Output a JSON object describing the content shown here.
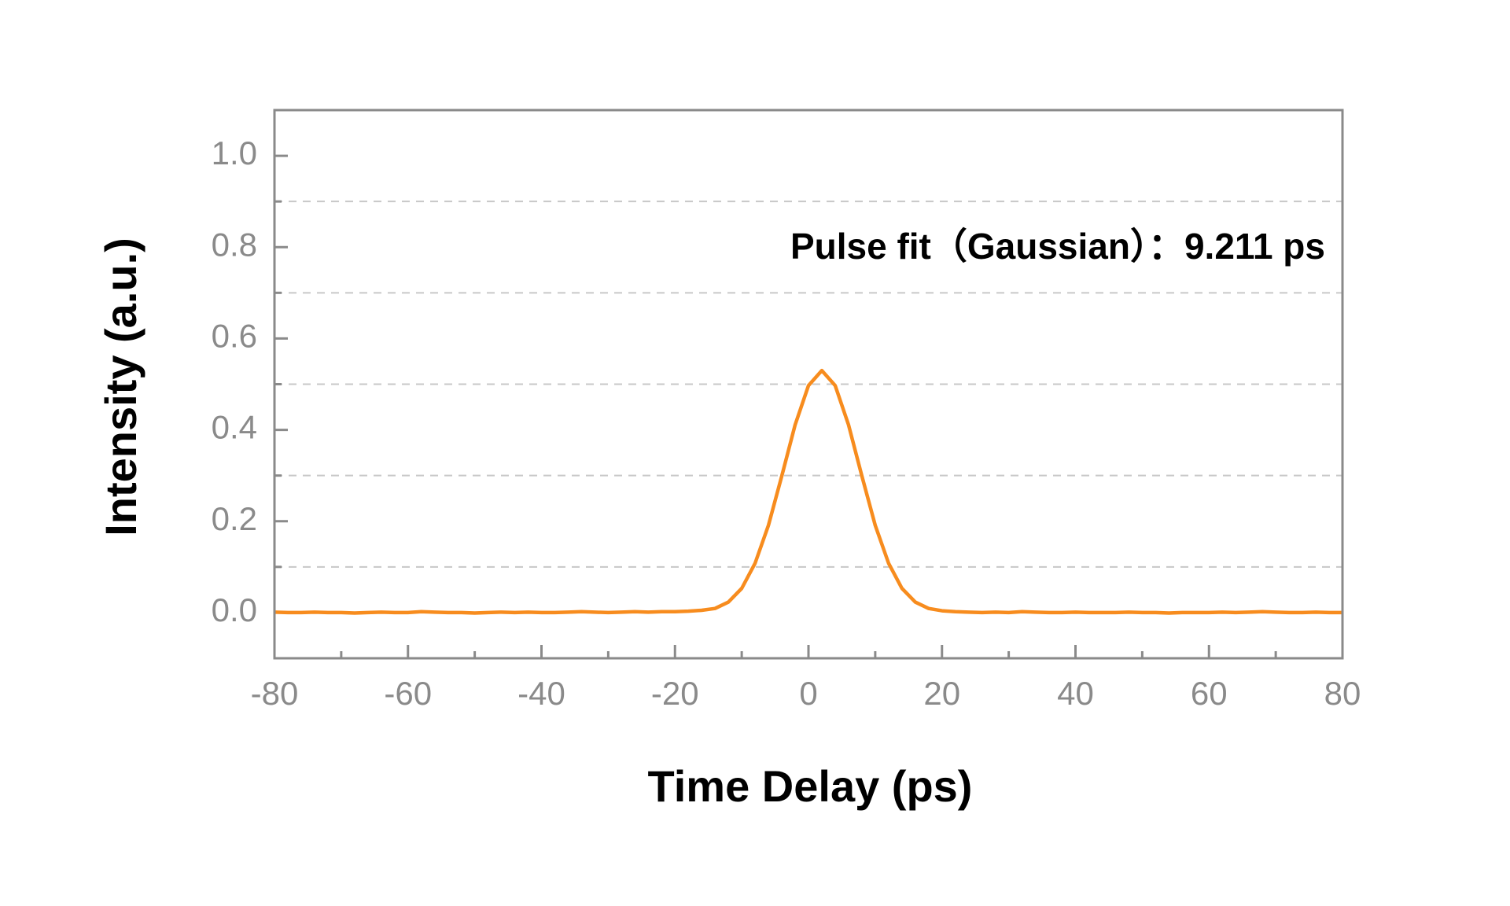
{
  "chart_data": {
    "type": "line",
    "xlabel": "Time Delay (ps)",
    "ylabel": "Intensity (a.u.)",
    "annotation": "Pulse fit（Gaussian）：9.211 ps",
    "x": [
      -80,
      -78,
      -76,
      -74,
      -72,
      -70,
      -68,
      -66,
      -64,
      -62,
      -60,
      -58,
      -56,
      -54,
      -52,
      -50,
      -48,
      -46,
      -44,
      -42,
      -40,
      -38,
      -36,
      -34,
      -32,
      -30,
      -28,
      -26,
      -24,
      -22,
      -20,
      -18,
      -16,
      -14,
      -12,
      -10,
      -8,
      -6,
      -4,
      -2,
      0,
      2,
      4,
      6,
      8,
      10,
      12,
      14,
      16,
      18,
      20,
      22,
      24,
      26,
      28,
      30,
      32,
      34,
      36,
      38,
      40,
      42,
      44,
      46,
      48,
      50,
      52,
      54,
      56,
      58,
      60,
      62,
      64,
      66,
      68,
      70,
      72,
      74,
      76,
      78,
      80
    ],
    "values": [
      0.001,
      0.0,
      0.0,
      0.001,
      0.0,
      0.0,
      -0.001,
      0.0,
      0.001,
      0.0,
      0.0,
      0.002,
      0.001,
      0.0,
      0.0,
      -0.001,
      0.0,
      0.001,
      0.0,
      0.001,
      0.0,
      0.0,
      0.001,
      0.002,
      0.001,
      0.0,
      0.001,
      0.002,
      0.001,
      0.002,
      0.002,
      0.003,
      0.005,
      0.009,
      0.023,
      0.053,
      0.108,
      0.191,
      0.299,
      0.411,
      0.497,
      0.53,
      0.497,
      0.411,
      0.299,
      0.191,
      0.108,
      0.053,
      0.023,
      0.009,
      0.004,
      0.002,
      0.001,
      0.0,
      0.001,
      0.0,
      0.002,
      0.001,
      0.0,
      0.0,
      0.001,
      0.0,
      0.0,
      0.0,
      0.001,
      0.0,
      0.0,
      -0.001,
      0.0,
      0.0,
      0.0,
      0.001,
      0.0,
      0.001,
      0.002,
      0.001,
      0.0,
      0.0,
      0.001,
      0.0,
      0.0
    ],
    "color": "#f78c1e",
    "xlim": [
      -80,
      80
    ],
    "xticks": [
      -80,
      -60,
      -40,
      -20,
      0,
      20,
      40,
      60,
      80
    ],
    "xminor_ticks": [
      -70,
      -50,
      -30,
      -10,
      10,
      30,
      50,
      70
    ],
    "ylim": [
      -0.1,
      1.1
    ],
    "yticks": [
      {
        "value": 0,
        "label": "0.0"
      },
      0.2,
      0.4,
      0.6,
      0.8,
      {
        "value": 1,
        "label": "1.0"
      }
    ],
    "yminor_ticks": [
      0.1,
      0.3,
      0.5,
      0.7,
      0.9
    ],
    "grid": true
  }
}
